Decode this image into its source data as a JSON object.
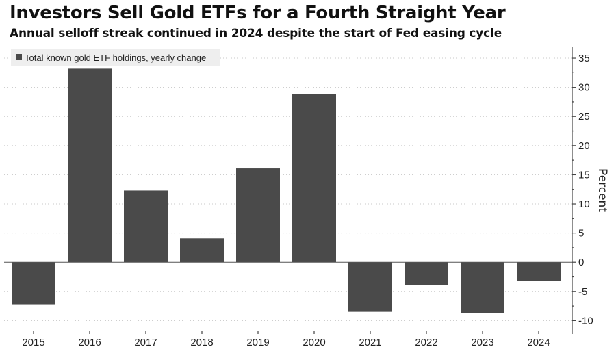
{
  "chart_data": {
    "type": "bar",
    "title": "Investors Sell Gold ETFs for a Fourth Straight Year",
    "subtitle": "Annual selloff streak continued in 2024 despite the start of Fed easing cycle",
    "legend": "Total known gold ETF holdings, yearly change",
    "categories": [
      "2015",
      "2016",
      "2017",
      "2018",
      "2019",
      "2020",
      "2021",
      "2022",
      "2023",
      "2024"
    ],
    "values": [
      -7.2,
      33.2,
      12.3,
      4.1,
      16.1,
      28.9,
      -8.5,
      -3.9,
      -8.7,
      -3.2
    ],
    "ylabel": "Percent",
    "ylim": [
      -12.3,
      37.0
    ],
    "yticks": [
      35,
      30,
      25,
      20,
      15,
      10,
      5,
      0,
      -5,
      -10
    ],
    "y_axis_position": "right",
    "grid": true,
    "bar_color": "#4a4a4a",
    "legend_bg": "#eeeeee"
  }
}
